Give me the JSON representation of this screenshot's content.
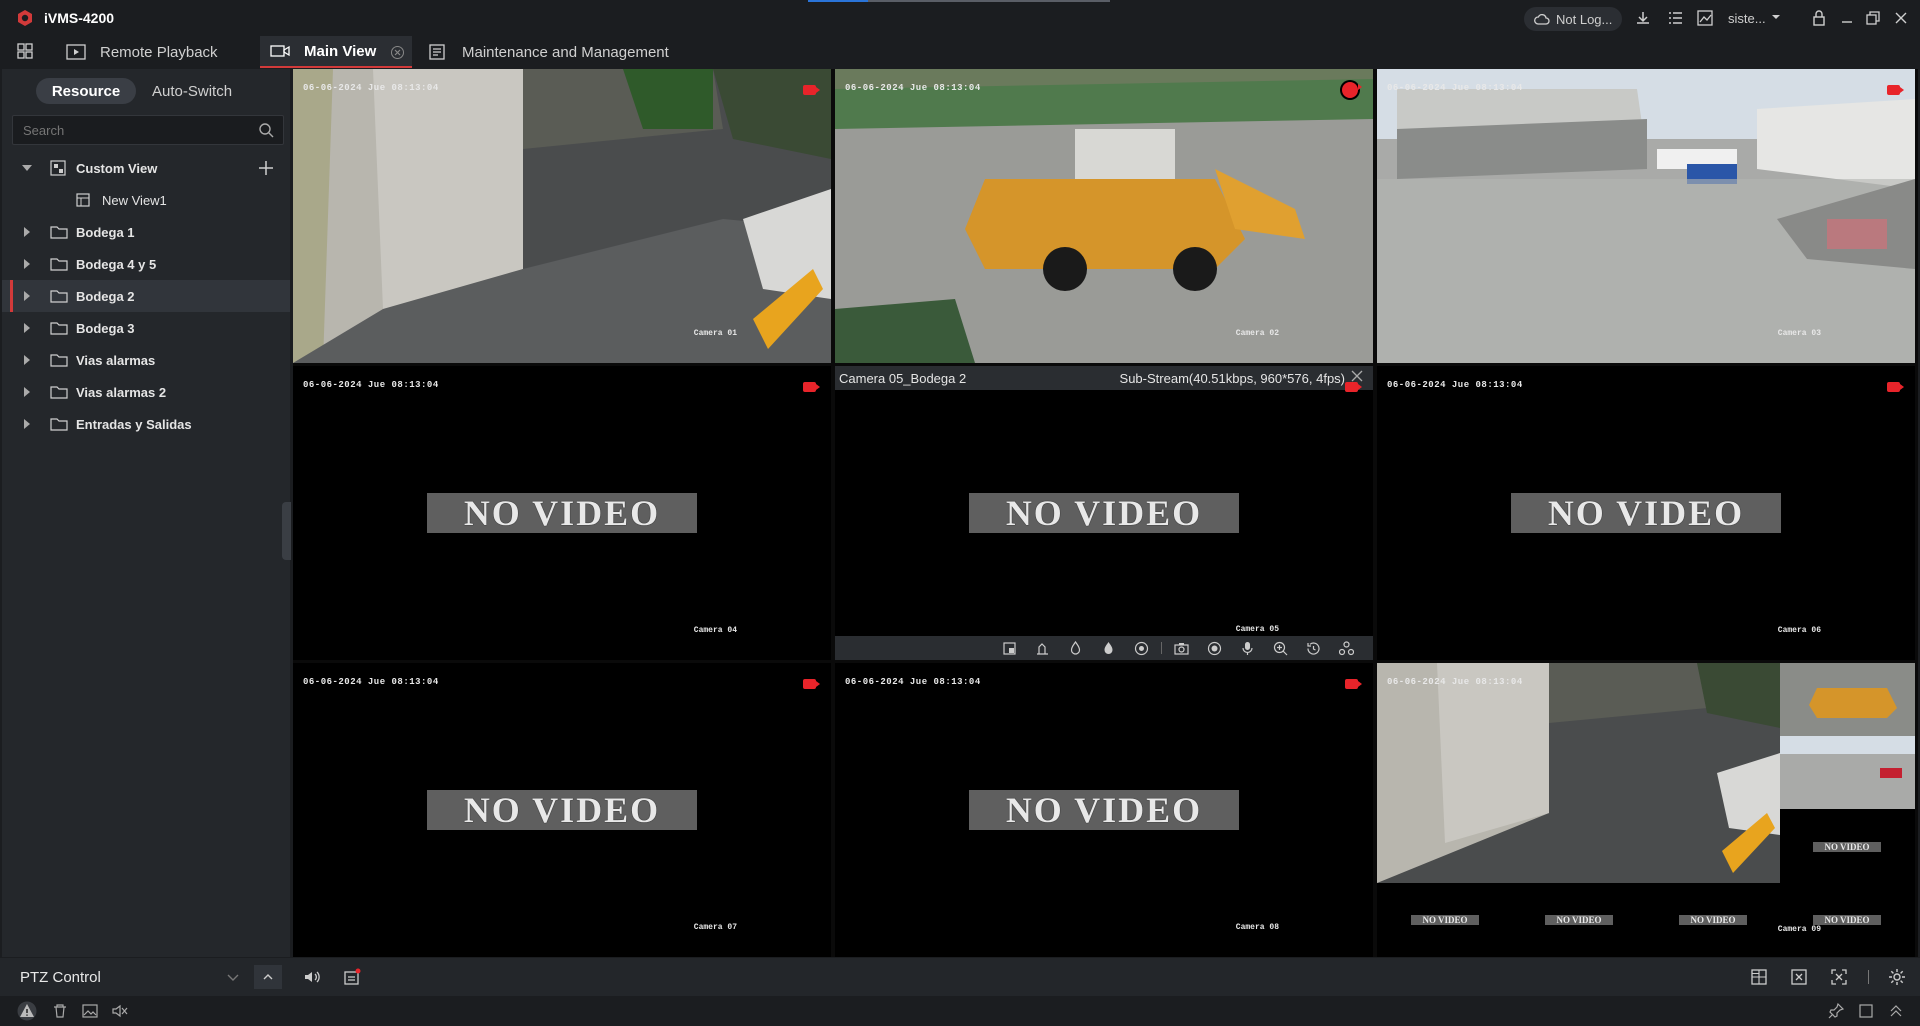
{
  "app": {
    "title": "iVMS-4200",
    "user": "Not Log...",
    "site": "siste..."
  },
  "tabs": [
    {
      "label": "Remote Playback"
    },
    {
      "label": "Main View"
    },
    {
      "label": "Maintenance and Management"
    }
  ],
  "sidebar": {
    "seg_resource": "Resource",
    "seg_autoswitch": "Auto-Switch",
    "search_placeholder": "Search",
    "items": [
      {
        "label": "Custom View"
      },
      {
        "label": "New View1"
      },
      {
        "label": "Bodega 1"
      },
      {
        "label": "Bodega 4 y 5"
      },
      {
        "label": "Bodega 2"
      },
      {
        "label": "Bodega 3"
      },
      {
        "label": "Vias alarmas"
      },
      {
        "label": "Vias alarmas 2"
      },
      {
        "label": "Entradas y Salidas"
      }
    ]
  },
  "cells": [
    {
      "ts": "06-06-2024 Jue 08:13:04",
      "cam": "Camera 01"
    },
    {
      "ts": "06-06-2024 Jue 08:13:04",
      "cam": "Camera 02"
    },
    {
      "ts": "06-06-2024 Jue 08:13:04",
      "cam": "Camera 03"
    },
    {
      "ts": "06-06-2024 Jue 08:13:04",
      "cam": "Camera 04",
      "nv": "NO VIDEO"
    },
    {
      "ts": "",
      "cam": "Camera 05",
      "nv": "NO VIDEO",
      "title": "Camera 05_Bodega 2",
      "stream": "Sub-Stream(40.51kbps, 960*576, 4fps)"
    },
    {
      "ts": "06-06-2024 Jue 08:13:04",
      "cam": "Camera 06",
      "nv": "NO VIDEO"
    },
    {
      "ts": "06-06-2024 Jue 08:13:04",
      "cam": "Camera 07",
      "nv": "NO VIDEO"
    },
    {
      "ts": "06-06-2024 Jue 08:13:04",
      "cam": "Camera 08",
      "nv": "NO VIDEO"
    },
    {
      "ts": "06-06-2024 Jue 08:13:04",
      "cam": "Camera 09",
      "nv": "NO VIDEO"
    }
  ],
  "bottom": {
    "ptz": "PTZ Control"
  },
  "colors": {
    "accent": "#d23a3a",
    "bg": "#1b1d20",
    "panel": "#24272b"
  }
}
